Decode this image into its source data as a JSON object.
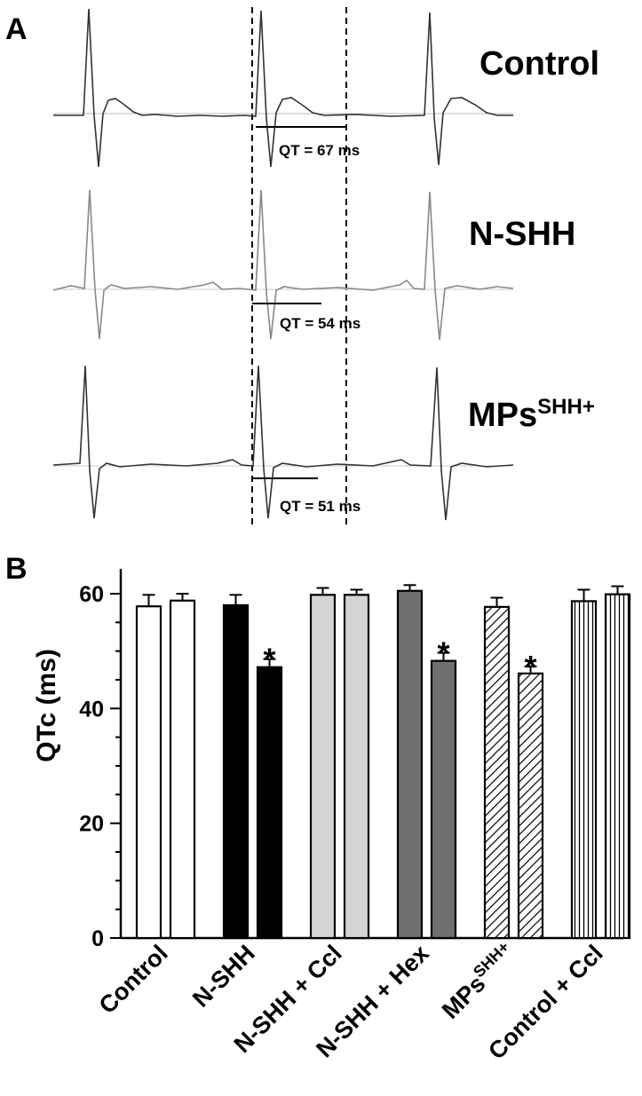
{
  "panel_a": {
    "letter": "A",
    "traces": [
      {
        "label": "Control",
        "label_sup": "",
        "qt_text": "QT = 67 ms",
        "qt_ms": 67,
        "color": "#333333"
      },
      {
        "label": "N-SHH",
        "label_sup": "",
        "qt_text": "QT = 54 ms",
        "qt_ms": 54,
        "color": "#888888"
      },
      {
        "label": "MPs",
        "label_sup": "SHH+",
        "qt_text": "QT = 51 ms",
        "qt_ms": 51,
        "color": "#333333"
      }
    ]
  },
  "chart_data": {
    "type": "bar",
    "panel_letter": "B",
    "ylabel": "QTc (ms)",
    "ylim": [
      0,
      60
    ],
    "yticks": [
      0,
      20,
      40,
      60
    ],
    "groups": [
      {
        "label": "Control",
        "label_sup": "",
        "pattern": "white",
        "values": [
          57.8,
          58.8
        ],
        "errors": [
          2.0,
          1.2
        ],
        "significant": [
          false,
          false
        ]
      },
      {
        "label": "N-SHH",
        "label_sup": "",
        "pattern": "black",
        "values": [
          58.0,
          47.2
        ],
        "errors": [
          1.8,
          1.4
        ],
        "significant": [
          false,
          true
        ]
      },
      {
        "label": "N-SHH + Ccl",
        "label_sup": "",
        "pattern": "light-gray",
        "values": [
          59.8,
          59.8
        ],
        "errors": [
          1.2,
          0.9
        ],
        "significant": [
          false,
          false
        ]
      },
      {
        "label": "N-SHH + Hex",
        "label_sup": "",
        "pattern": "dark-gray",
        "values": [
          60.5,
          48.3
        ],
        "errors": [
          1.0,
          1.4
        ],
        "significant": [
          false,
          true
        ]
      },
      {
        "label": "MPs",
        "label_sup": "SHH+",
        "pattern": "diagonal-hatch",
        "values": [
          57.7,
          46.1
        ],
        "errors": [
          1.6,
          1.2
        ],
        "significant": [
          false,
          true
        ]
      },
      {
        "label": "Control + Ccl",
        "label_sup": "",
        "pattern": "vertical-lines",
        "values": [
          58.7,
          59.9
        ],
        "errors": [
          2.0,
          1.4
        ],
        "significant": [
          false,
          false
        ]
      }
    ],
    "significance_marker": "*"
  }
}
